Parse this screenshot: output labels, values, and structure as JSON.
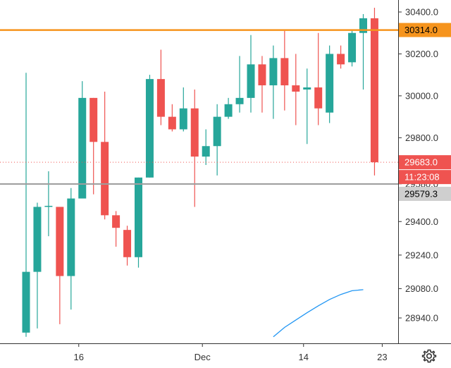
{
  "chart_data": {
    "type": "candlestick",
    "ylim": [
      28850,
      30450
    ],
    "y_ticks": [
      28940,
      29080,
      29240,
      29400,
      29580,
      29800,
      30000,
      30200,
      30400
    ],
    "y_tick_labels": [
      "28940.0",
      "29080.0",
      "29240.0",
      "29400.0",
      "29580.0",
      "29800.0",
      "30000.0",
      "30200.0",
      "30400.0"
    ],
    "x_ticks": [
      {
        "index": 5,
        "label": "16"
      },
      {
        "index": 16,
        "label": "Dec"
      },
      {
        "index": 25,
        "label": "14"
      },
      {
        "index": 32,
        "label": "23"
      }
    ],
    "candles": [
      {
        "o": 28870,
        "h": 30110,
        "l": 28850,
        "c": 29160
      },
      {
        "o": 29160,
        "h": 29490,
        "l": 28890,
        "c": 29470
      },
      {
        "o": 29470,
        "h": 29640,
        "l": 29330,
        "c": 29475
      },
      {
        "o": 29470,
        "h": 29470,
        "l": 28910,
        "c": 29140
      },
      {
        "o": 29140,
        "h": 29560,
        "l": 28980,
        "c": 29510
      },
      {
        "o": 29510,
        "h": 30070,
        "l": 29510,
        "c": 29990
      },
      {
        "o": 29990,
        "h": 29990,
        "l": 29530,
        "c": 29780
      },
      {
        "o": 29780,
        "h": 30020,
        "l": 29410,
        "c": 29430
      },
      {
        "o": 29430,
        "h": 29450,
        "l": 29280,
        "c": 29370
      },
      {
        "o": 29360,
        "h": 29380,
        "l": 29190,
        "c": 29230
      },
      {
        "o": 29230,
        "h": 29610,
        "l": 29180,
        "c": 29610
      },
      {
        "o": 29610,
        "h": 30100,
        "l": 29610,
        "c": 30080
      },
      {
        "o": 30080,
        "h": 30220,
        "l": 29860,
        "c": 29900
      },
      {
        "o": 29900,
        "h": 29960,
        "l": 29830,
        "c": 29840
      },
      {
        "o": 29840,
        "h": 30040,
        "l": 29830,
        "c": 29940
      },
      {
        "o": 29940,
        "h": 30030,
        "l": 29470,
        "c": 29710
      },
      {
        "o": 29710,
        "h": 29840,
        "l": 29670,
        "c": 29760
      },
      {
        "o": 29760,
        "h": 29960,
        "l": 29620,
        "c": 29900
      },
      {
        "o": 29900,
        "h": 29990,
        "l": 29890,
        "c": 29960
      },
      {
        "o": 29960,
        "h": 30190,
        "l": 29920,
        "c": 29990
      },
      {
        "o": 29990,
        "h": 30290,
        "l": 29920,
        "c": 30150
      },
      {
        "o": 30150,
        "h": 30190,
        "l": 29920,
        "c": 30050
      },
      {
        "o": 30050,
        "h": 30240,
        "l": 29890,
        "c": 30180
      },
      {
        "o": 30180,
        "h": 30310,
        "l": 29930,
        "c": 30050
      },
      {
        "o": 30050,
        "h": 30200,
        "l": 29860,
        "c": 30020
      },
      {
        "o": 30030,
        "h": 30130,
        "l": 29770,
        "c": 30040
      },
      {
        "o": 30040,
        "h": 30300,
        "l": 29860,
        "c": 29940
      },
      {
        "o": 29920,
        "h": 30240,
        "l": 29870,
        "c": 30200
      },
      {
        "o": 30200,
        "h": 30240,
        "l": 30130,
        "c": 30150
      },
      {
        "o": 30160,
        "h": 30310,
        "l": 30140,
        "c": 30300
      },
      {
        "o": 30300,
        "h": 30390,
        "l": 30030,
        "c": 30370
      },
      {
        "o": 30370,
        "h": 30420,
        "l": 29620,
        "c": 29683
      }
    ],
    "moving_average": [
      {
        "index": 22,
        "value": 28850
      },
      {
        "index": 23,
        "value": 28895
      },
      {
        "index": 24,
        "value": 28930
      },
      {
        "index": 25,
        "value": 28965
      },
      {
        "index": 26,
        "value": 28998
      },
      {
        "index": 27,
        "value": 29028
      },
      {
        "index": 28,
        "value": 29052
      },
      {
        "index": 29,
        "value": 29070
      },
      {
        "index": 30,
        "value": 29075
      }
    ],
    "horizontal_lines": [
      {
        "name": "resistance",
        "value": 30314.0,
        "color": "#f6941d"
      },
      {
        "name": "support",
        "value": 29579.3,
        "color": "#9e9e9e"
      }
    ],
    "last_price": 29683.0,
    "countdown": "11:23:08"
  },
  "badges": {
    "resistance_label": "30314.0",
    "last_price_label": "29683.0",
    "countdown_label": "11:23:08",
    "support_label": "29579.3"
  },
  "colors": {
    "up": "#26a69a",
    "down": "#ef5350",
    "ma": "#2196f3",
    "resistance": "#f6941d",
    "support": "#9e9e9e",
    "axis": "#333333",
    "support_badge_bg": "#cfcfcf"
  },
  "toolbar": {
    "settings_icon": "gear-icon"
  }
}
